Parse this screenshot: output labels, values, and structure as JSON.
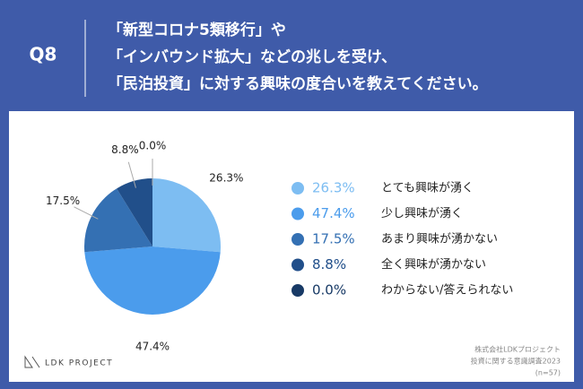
{
  "question": "Q8",
  "title": [
    "「新型コロナ5類移行」や",
    "「インバウンド拡大」などの兆しを受け、",
    "「民泊投資」に対する興味の度合いを教えてください。"
  ],
  "chart_data": {
    "type": "pie",
    "categories": [
      "とても興味が湧く",
      "少し興味が湧く",
      "あまり興味が湧かない",
      "全く興味が湧かない",
      "わからない/答えられない"
    ],
    "values": [
      26.3,
      47.4,
      17.5,
      8.8,
      0.0
    ],
    "value_labels": [
      "26.3%",
      "47.4%",
      "17.5%",
      "8.8%",
      "0.0%"
    ],
    "colors": [
      "#7dbdf2",
      "#4b9cec",
      "#3470b3",
      "#214f8a",
      "#183a66"
    ]
  },
  "logo": "LDK PROJECT",
  "source": [
    "株式会社LDKプロジェクト",
    "投資に関する意識調査2023",
    "(n=57)"
  ]
}
